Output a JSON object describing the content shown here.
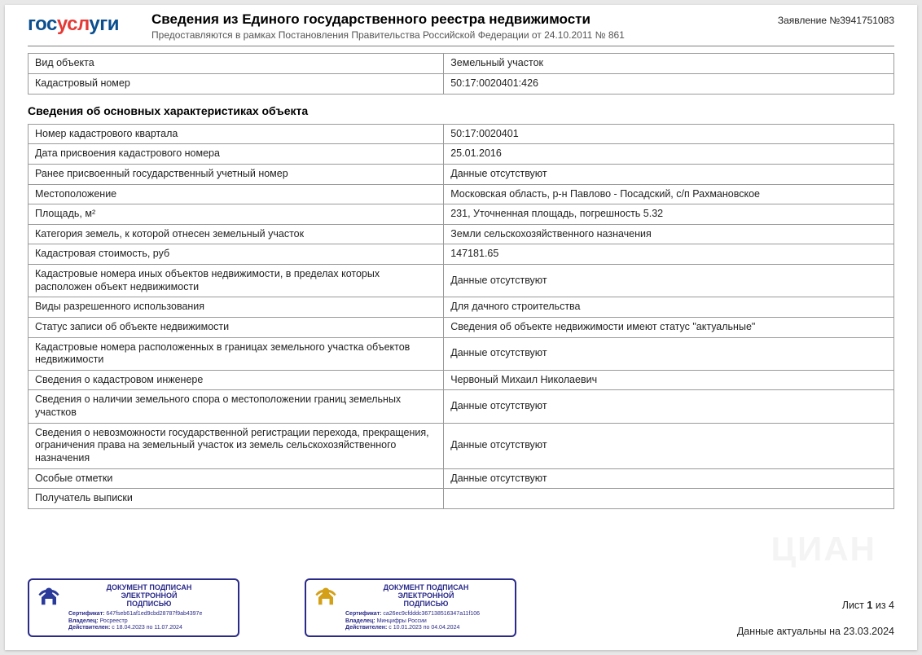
{
  "logo": {
    "part1": "гос",
    "part2": "усл",
    "part3": "уги"
  },
  "header": {
    "title": "Сведения из Единого государственного реестра недвижимости",
    "subtitle": "Предоставляются в рамках Постановления Правительства Российской Федерации от 24.10.2011 № 861",
    "application_label": "Заявление №",
    "application_number": "3941751083"
  },
  "table1": {
    "rows": [
      {
        "label": "Вид объекта",
        "value": "Земельный участок"
      },
      {
        "label": "Кадастровый номер",
        "value": "50:17:0020401:426"
      }
    ]
  },
  "section_title": "Сведения об основных характеристиках объекта",
  "table2": {
    "rows": [
      {
        "label": "Номер кадастрового квартала",
        "value": "50:17:0020401"
      },
      {
        "label": "Дата присвоения кадастрового номера",
        "value": "25.01.2016"
      },
      {
        "label": "Ранее присвоенный государственный учетный номер",
        "value": "Данные отсутствуют"
      },
      {
        "label": "Местоположение",
        "value": "Московская область, р-н Павлово - Посадский, с/п Рахмановское"
      },
      {
        "label": "Площадь, м²",
        "value": "231, Уточненная площадь, погрешность 5.32"
      },
      {
        "label": "Категория земель, к которой отнесен земельный участок",
        "value": "Земли сельскохозяйственного назначения"
      },
      {
        "label": "Кадастровая стоимость, руб",
        "value": "147181.65"
      },
      {
        "label": "Кадастровые номера иных объектов недвижимости, в пределах которых расположен объект недвижимости",
        "value": "Данные отсутствуют"
      },
      {
        "label": "Виды разрешенного использования",
        "value": "Для дачного строительства"
      },
      {
        "label": "Статус записи об объекте недвижимости",
        "value": "Сведения об объекте недвижимости имеют статус \"актуальные\""
      },
      {
        "label": "Кадастровые номера расположенных в границах земельного участка объектов недвижимости",
        "value": "Данные отсутствуют"
      },
      {
        "label": "Сведения о кадастровом инженере",
        "value": "Червоный Михаил Николаевич"
      },
      {
        "label": "Сведения о наличии земельного спора о местоположении границ земельных участков",
        "value": "Данные отсутствуют"
      },
      {
        "label": "Сведения о невозможности государственной регистрации перехода, прекращения, ограничения права на земельный участок из земель сельскохозяйственного назначения",
        "value": "Данные отсутствуют"
      },
      {
        "label": "Особые отметки",
        "value": "Данные отсутствуют"
      },
      {
        "label": "Получатель выписки",
        "value": ""
      }
    ]
  },
  "signatures": [
    {
      "title": "ДОКУМЕНТ ПОДПИСАН\nЭЛЕКТРОННОЙ\nПОДПИСЬЮ",
      "cert_label": "Сертификат:",
      "cert": "647fseb61af1ed9cbd28787f9ab4397e",
      "owner_label": "Владелец:",
      "owner": "Росреестр",
      "valid_label": "Действителен:",
      "valid": "с 18.04.2023 по 11.07.2024",
      "emblem_color": "#2a3a9a"
    },
    {
      "title": "ДОКУМЕНТ ПОДПИСАН\nЭЛЕКТРОННОЙ\nПОДПИСЬЮ",
      "cert_label": "Сертификат:",
      "cert": "ca26ec9cfdddc367138516347a11f106",
      "owner_label": "Владелец:",
      "owner": "Минцифры России",
      "valid_label": "Действителен:",
      "valid": "с 10.01.2023 по 04.04.2024",
      "emblem_color": "#d4a017"
    }
  ],
  "footer": {
    "page_label": "Лист",
    "page_current": "1",
    "page_of": "из",
    "page_total": "4",
    "data_actual": "Данные актуальны на 23.03.2024"
  },
  "watermark": "ЦИАН",
  "colors": {
    "border": "#9a9a9a",
    "sig_border": "#2a2a8a",
    "text": "#222222"
  }
}
